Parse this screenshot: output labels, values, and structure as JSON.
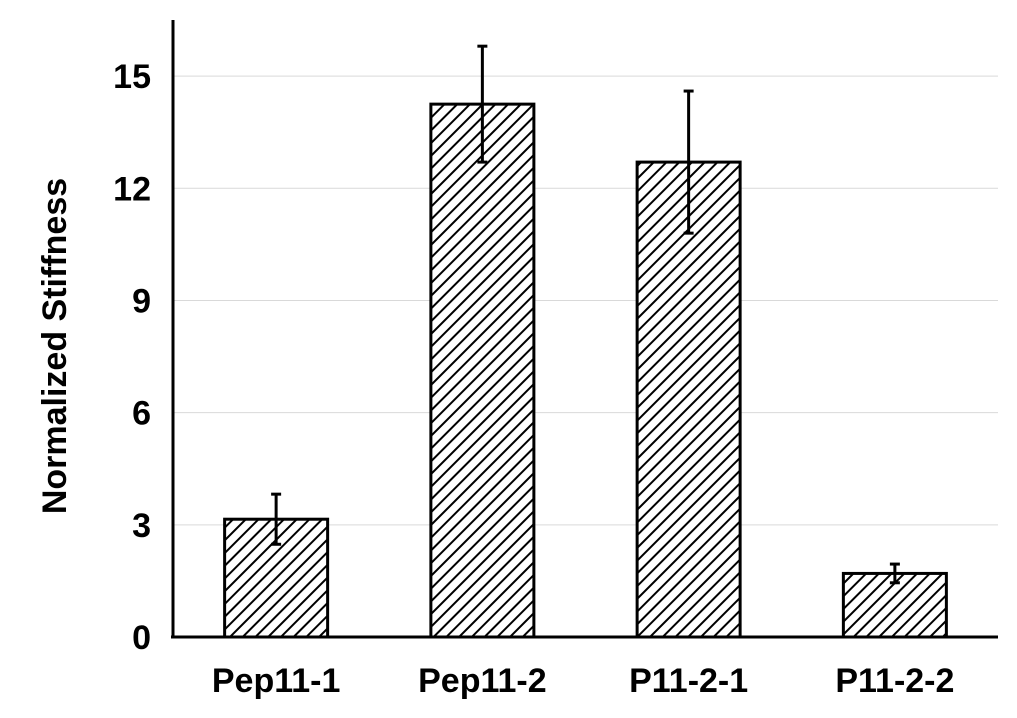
{
  "chart_data": {
    "type": "bar",
    "categories": [
      "Pep11-1",
      "Pep11-2",
      "P11-2-1",
      "P11-2-2"
    ],
    "values": [
      3.15,
      14.25,
      12.7,
      1.7
    ],
    "errors": [
      0.67,
      1.55,
      1.9,
      0.25
    ],
    "ylabel": "Normalized Stiffness",
    "xlabel": "",
    "ylim": [
      0,
      16.5
    ],
    "yticks": [
      0,
      3,
      6,
      9,
      12,
      15
    ],
    "grid": true,
    "pattern": "diagonal-hatch",
    "bar_fill_color": "#000000",
    "bar_bg_color": "#ffffff"
  }
}
